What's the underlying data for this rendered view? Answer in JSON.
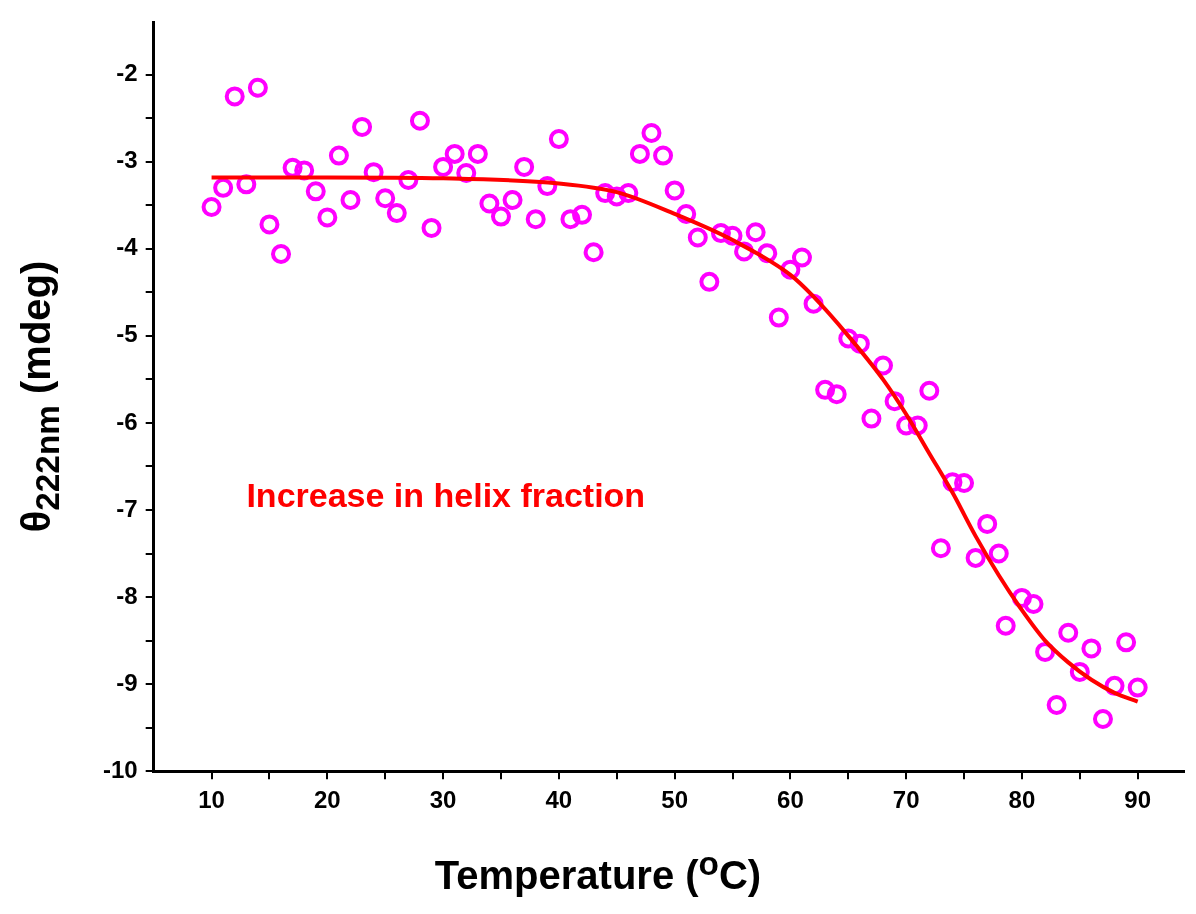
{
  "chart_data": {
    "type": "scatter",
    "xlabel": "Temperature ($^{o}$C)",
    "ylabel": "θ$_{222nm}$ (mdeg)",
    "xlim": [
      5,
      94
    ],
    "ylim": [
      -10,
      -1.4
    ],
    "xticks": [
      10,
      {
        "value": 15,
        "label": null
      },
      20,
      {
        "value": 25,
        "label": null
      },
      30,
      {
        "value": 35,
        "label": null
      },
      40,
      {
        "value": 45,
        "label": null
      },
      50,
      {
        "value": 55,
        "label": null
      },
      60,
      {
        "value": 65,
        "label": null
      },
      70,
      {
        "value": 75,
        "label": null
      },
      80,
      {
        "value": 85,
        "label": null
      },
      90
    ],
    "yticks": [
      -10,
      {
        "value": -9.5,
        "label": null
      },
      -9,
      {
        "value": -8.5,
        "label": null
      },
      -8,
      {
        "value": -7.5,
        "label": null
      },
      -7,
      {
        "value": -6.5,
        "label": null
      },
      -6,
      {
        "value": -5.5,
        "label": null
      },
      -5,
      {
        "value": -4.5,
        "label": null
      },
      -4,
      {
        "value": -3.5,
        "label": null
      },
      -3,
      {
        "value": -2.5,
        "label": null
      },
      -2
    ],
    "grid": false,
    "legend": false,
    "annotations": [
      "Increase in helix fraction"
    ],
    "series": [
      {
        "marker": "circle",
        "color": "#ff00ff",
        "x": [
          10,
          11,
          12,
          13,
          14,
          15,
          16,
          17,
          18,
          19,
          20,
          21,
          22,
          23,
          24,
          25,
          26,
          27,
          28,
          29,
          30,
          31,
          32,
          33,
          34,
          35,
          36,
          37,
          38,
          39,
          40,
          41,
          42,
          43,
          44,
          45,
          46,
          47,
          48,
          49,
          50,
          51,
          52,
          53,
          54,
          55,
          56,
          57,
          58,
          59,
          60,
          61,
          62,
          63,
          64,
          65,
          66,
          67,
          68,
          69,
          70,
          71,
          72,
          73,
          74,
          75,
          76,
          77,
          78,
          78.6,
          80,
          81,
          82,
          83,
          84,
          85,
          86,
          87,
          88,
          89,
          90
        ],
        "values": [
          -3.52,
          -3.3,
          -2.25,
          -3.26,
          -2.15,
          -3.72,
          -4.06,
          -3.07,
          -3.1,
          -3.34,
          -3.64,
          -2.93,
          -3.44,
          -2.6,
          -3.12,
          -3.42,
          -3.59,
          -3.21,
          -2.53,
          -3.76,
          -3.06,
          -2.91,
          -3.13,
          -2.91,
          -3.48,
          -3.63,
          -3.44,
          -3.06,
          -3.66,
          -3.28,
          -2.74,
          -3.66,
          -3.61,
          -4.04,
          -3.36,
          -3.4,
          -3.36,
          -2.91,
          -2.67,
          -2.93,
          -3.33,
          -3.6,
          -3.87,
          -4.38,
          -3.82,
          -3.85,
          -4.03,
          -3.81,
          -4.05,
          -4.79,
          -4.24,
          -4.1,
          -4.63,
          -5.62,
          -5.67,
          -5.03,
          -5.09,
          -5.95,
          -5.34,
          -5.75,
          -6.03,
          -6.03,
          -5.63,
          -7.44,
          -6.68,
          -6.69,
          -7.55,
          -7.16,
          -7.5,
          -8.33,
          -8.01,
          -8.08,
          -8.63,
          -9.24,
          -8.41,
          -8.86,
          -8.59,
          -9.4,
          -9.02,
          -8.52,
          -9.04
        ]
      },
      {
        "type": "line",
        "marker": "none",
        "color": "#ff0000",
        "x": [
          10,
          20,
          30,
          40,
          45,
          50,
          55,
          60,
          62,
          65,
          68,
          70,
          72,
          74,
          76,
          78,
          80,
          82,
          84,
          86,
          88,
          90
        ],
        "values": [
          -3.18,
          -3.18,
          -3.19,
          -3.25,
          -3.35,
          -3.6,
          -3.9,
          -4.3,
          -4.55,
          -5.0,
          -5.5,
          -5.9,
          -6.35,
          -6.8,
          -7.3,
          -7.75,
          -8.15,
          -8.5,
          -8.75,
          -8.95,
          -9.1,
          -9.2
        ]
      }
    ]
  }
}
